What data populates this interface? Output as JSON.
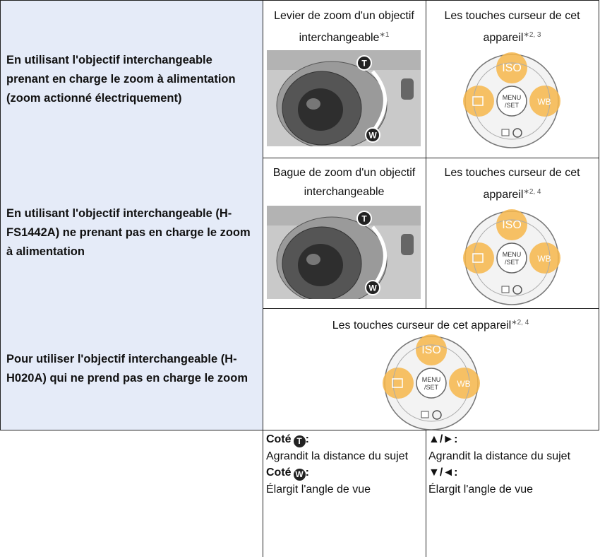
{
  "table": {
    "rows": [
      {
        "label": "En utilisant l'objectif interchangeable prenant en charge le zoom à alimentation (zoom actionné électriquement)",
        "cells": [
          {
            "caption": "Levier de zoom d'un objectif interchangeable",
            "note": "∗1"
          },
          {
            "caption": "Les touches curseur de cet appareil",
            "note": "∗2, 3"
          }
        ]
      },
      {
        "label": "En utilisant l'objectif interchangeable (H-FS1442A) ne prenant pas en charge le zoom à alimentation",
        "cells": [
          {
            "caption": "Bague de zoom d'un objectif interchangeable"
          },
          {
            "caption": "Les touches curseur de cet appareil",
            "note": "∗2, 4"
          }
        ]
      },
      {
        "label": "Pour utiliser l'objectif interchangeable (H-H020A) qui ne prend pas en charge le zoom",
        "cells": [
          {
            "caption": "Les touches curseur de cet appareil",
            "note": "∗2, 4"
          }
        ]
      }
    ],
    "legend": {
      "lens": [
        {
          "heading": "Coté",
          "icon": "T",
          "text": "Agrandit la distance du sujet"
        },
        {
          "heading": "Coté",
          "icon": "W",
          "text": "Élargit l'angle de vue"
        }
      ],
      "keys": [
        {
          "heading": "▲/►:",
          "text": "Agrandit la distance du sujet"
        },
        {
          "heading": "▼/◄:",
          "text": "Élargit l'angle de vue"
        }
      ]
    }
  },
  "keypad": {
    "top": "ISO",
    "right": "WB",
    "center_top": "MENU",
    "center_bottom": "/SET"
  }
}
